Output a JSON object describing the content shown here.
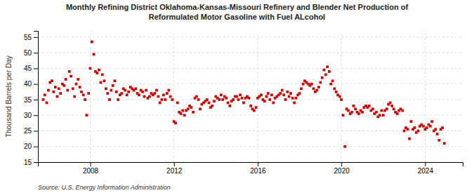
{
  "chart_data": {
    "type": "scatter",
    "title": "Monthly Refining District Oklahoma-Kansas-Missouri Refinery and Blender Net Production of\nReformulated Motor Gasoline with Fuel ALcohol",
    "y_label": "Thousand Barrels per Day",
    "source": "Source: U.S. Energy Information Administration",
    "color": "#cc0000",
    "marker": "square",
    "grid": true,
    "xlim": [
      2005.5,
      2025.8
    ],
    "ylim": [
      15,
      57
    ],
    "xticks": [
      2008,
      2012,
      2016,
      2020,
      2024
    ],
    "yticks": [
      15,
      20,
      25,
      30,
      35,
      40,
      45,
      50,
      55
    ],
    "x": [
      2005.75,
      2005.83,
      2005.92,
      2006.0,
      2006.08,
      2006.17,
      2006.25,
      2006.33,
      2006.42,
      2006.5,
      2006.58,
      2006.67,
      2006.75,
      2006.83,
      2006.92,
      2007.0,
      2007.08,
      2007.17,
      2007.25,
      2007.33,
      2007.42,
      2007.5,
      2007.58,
      2007.67,
      2007.75,
      2007.83,
      2007.92,
      2008.0,
      2008.08,
      2008.17,
      2008.25,
      2008.33,
      2008.42,
      2008.5,
      2008.58,
      2008.67,
      2008.75,
      2008.83,
      2008.92,
      2009.0,
      2009.08,
      2009.17,
      2009.25,
      2009.33,
      2009.42,
      2009.5,
      2009.58,
      2009.67,
      2009.75,
      2009.83,
      2009.92,
      2010.0,
      2010.08,
      2010.17,
      2010.25,
      2010.33,
      2010.42,
      2010.5,
      2010.58,
      2010.67,
      2010.75,
      2010.83,
      2010.92,
      2011.0,
      2011.08,
      2011.17,
      2011.25,
      2011.33,
      2011.42,
      2011.5,
      2011.58,
      2011.67,
      2011.75,
      2011.83,
      2011.92,
      2012.0,
      2012.08,
      2012.17,
      2012.25,
      2012.33,
      2012.42,
      2012.5,
      2012.58,
      2012.67,
      2012.75,
      2012.83,
      2012.92,
      2013.0,
      2013.08,
      2013.17,
      2013.25,
      2013.33,
      2013.42,
      2013.5,
      2013.58,
      2013.67,
      2013.75,
      2013.83,
      2013.92,
      2014.0,
      2014.08,
      2014.17,
      2014.25,
      2014.33,
      2014.42,
      2014.5,
      2014.58,
      2014.67,
      2014.75,
      2014.83,
      2014.92,
      2015.0,
      2015.08,
      2015.17,
      2015.25,
      2015.33,
      2015.42,
      2015.5,
      2015.58,
      2015.67,
      2015.75,
      2015.83,
      2015.92,
      2016.0,
      2016.08,
      2016.17,
      2016.25,
      2016.33,
      2016.42,
      2016.5,
      2016.58,
      2016.67,
      2016.75,
      2016.83,
      2016.92,
      2017.0,
      2017.08,
      2017.17,
      2017.25,
      2017.33,
      2017.42,
      2017.5,
      2017.58,
      2017.67,
      2017.75,
      2017.83,
      2017.92,
      2018.0,
      2018.08,
      2018.17,
      2018.25,
      2018.33,
      2018.42,
      2018.5,
      2018.58,
      2018.67,
      2018.75,
      2018.83,
      2018.92,
      2019.0,
      2019.08,
      2019.17,
      2019.25,
      2019.33,
      2019.42,
      2019.5,
      2019.58,
      2019.67,
      2019.75,
      2019.83,
      2019.92,
      2020.0,
      2020.08,
      2020.17,
      2020.25,
      2020.33,
      2020.42,
      2020.5,
      2020.58,
      2020.67,
      2020.75,
      2020.83,
      2020.92,
      2021.0,
      2021.08,
      2021.17,
      2021.25,
      2021.33,
      2021.42,
      2021.5,
      2021.58,
      2021.67,
      2021.75,
      2021.83,
      2021.92,
      2022.0,
      2022.08,
      2022.17,
      2022.25,
      2022.33,
      2022.42,
      2022.5,
      2022.58,
      2022.67,
      2022.75,
      2022.83,
      2022.92,
      2023.0,
      2023.08,
      2023.17,
      2023.25,
      2023.33,
      2023.42,
      2023.5,
      2023.58,
      2023.67,
      2023.75,
      2023.83,
      2023.92,
      2024.0,
      2024.08,
      2024.17,
      2024.25,
      2024.33,
      2024.42,
      2024.5,
      2024.58,
      2024.67,
      2024.75,
      2024.83,
      2024.92
    ],
    "values": [
      35.0,
      36.5,
      34.0,
      38.0,
      40.5,
      41.0,
      37.5,
      39.0,
      36.0,
      38.5,
      37.0,
      40.0,
      39.5,
      41.5,
      38.0,
      44.0,
      42.5,
      38.5,
      36.0,
      40.0,
      41.5,
      39.0,
      37.5,
      36.5,
      35.0,
      30.0,
      37.0,
      45.0,
      53.5,
      49.5,
      44.0,
      43.5,
      44.5,
      40.5,
      43.0,
      41.0,
      38.5,
      37.0,
      35.0,
      38.0,
      39.5,
      41.0,
      37.5,
      35.0,
      36.5,
      37.0,
      38.5,
      38.0,
      36.5,
      37.5,
      39.0,
      38.5,
      38.0,
      38.5,
      37.0,
      36.5,
      38.0,
      37.5,
      36.0,
      38.0,
      35.5,
      36.0,
      37.0,
      36.5,
      37.0,
      38.0,
      36.0,
      34.0,
      35.0,
      36.5,
      35.0,
      37.0,
      38.0,
      36.0,
      35.0,
      28.0,
      27.5,
      34.0,
      31.0,
      30.5,
      31.5,
      30.0,
      31.5,
      32.0,
      33.0,
      32.5,
      31.0,
      35.5,
      36.0,
      35.0,
      32.0,
      33.5,
      34.0,
      34.5,
      35.0,
      34.0,
      32.5,
      33.0,
      34.5,
      36.0,
      35.5,
      35.0,
      36.5,
      35.0,
      36.0,
      35.5,
      34.0,
      33.0,
      34.5,
      35.0,
      36.0,
      36.0,
      35.0,
      36.5,
      35.5,
      34.0,
      35.5,
      36.0,
      35.5,
      33.0,
      32.0,
      31.5,
      32.5,
      35.5,
      36.0,
      36.5,
      35.0,
      34.5,
      36.0,
      37.0,
      35.0,
      36.5,
      34.0,
      35.5,
      36.0,
      36.5,
      37.0,
      38.0,
      36.5,
      35.0,
      37.5,
      36.0,
      37.0,
      35.5,
      34.0,
      35.5,
      36.5,
      37.0,
      38.5,
      40.0,
      41.0,
      40.5,
      40.0,
      39.5,
      40.0,
      38.5,
      37.5,
      38.0,
      39.0,
      40.5,
      42.0,
      44.5,
      43.0,
      45.5,
      44.0,
      40.0,
      41.0,
      38.5,
      37.5,
      36.5,
      36.0,
      35.0,
      30.0,
      20.0,
      32.0,
      31.5,
      30.5,
      31.0,
      33.0,
      32.0,
      31.0,
      30.5,
      31.5,
      31.0,
      32.5,
      33.0,
      32.5,
      33.0,
      31.5,
      32.0,
      30.5,
      31.0,
      29.5,
      30.0,
      31.5,
      30.0,
      31.5,
      32.0,
      33.5,
      34.0,
      33.0,
      32.0,
      31.0,
      30.5,
      31.5,
      32.0,
      31.5,
      25.0,
      26.0,
      25.5,
      22.5,
      28.0,
      25.5,
      26.0,
      24.5,
      25.0,
      26.5,
      27.0,
      26.5,
      25.5,
      26.0,
      27.0,
      26.5,
      28.0,
      25.0,
      25.5,
      24.0,
      22.0,
      25.5,
      26.0,
      21.0
    ]
  }
}
